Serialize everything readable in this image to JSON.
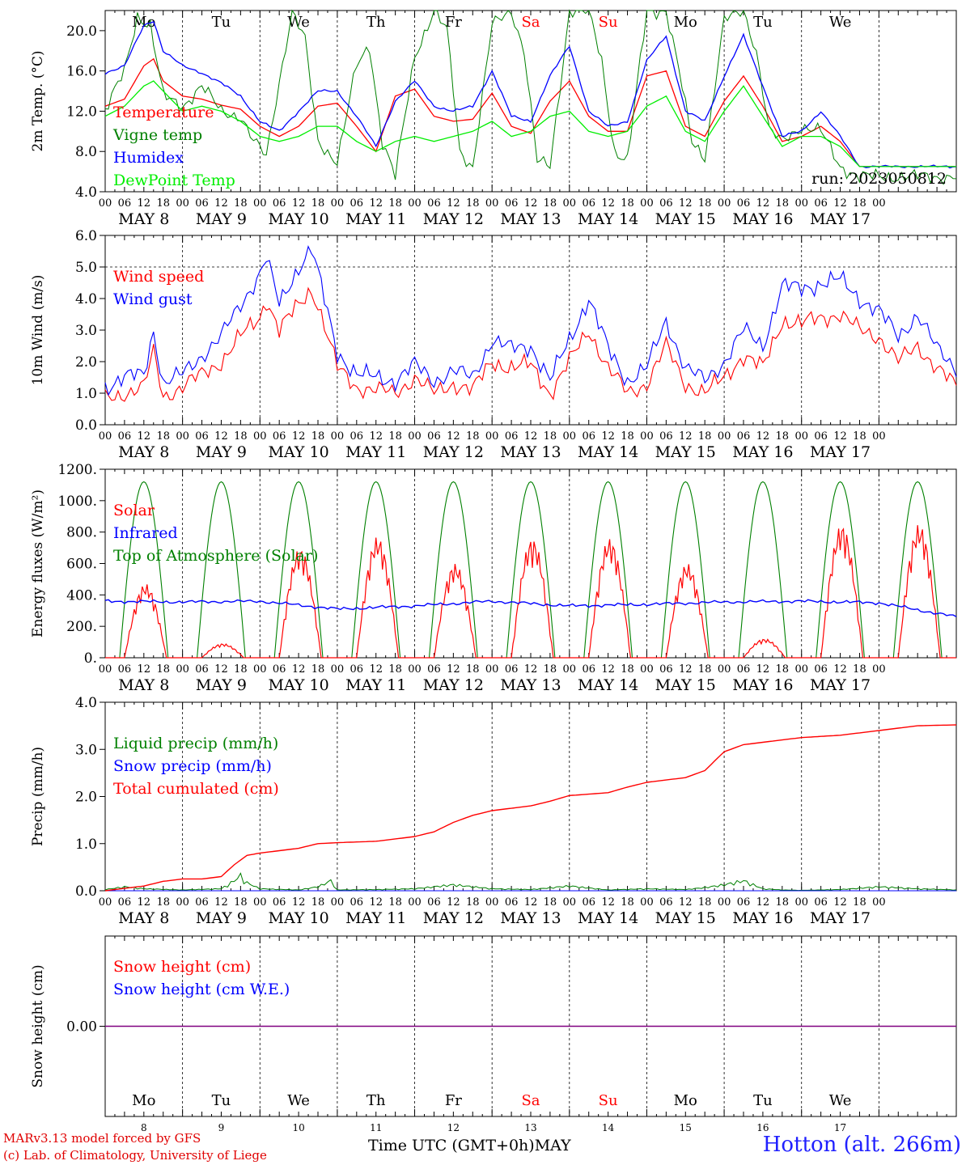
{
  "run_label": "run: 2023050812",
  "day_numbers": [
    "8",
    "9",
    "10",
    "11",
    "12",
    "13",
    "14",
    "15",
    "16",
    "17"
  ],
  "weekdays": [
    "Mo",
    "Tu",
    "We",
    "Th",
    "Fr",
    "Sa",
    "Su",
    "Mo",
    "Tu",
    "We"
  ],
  "weekend_days": [
    "Sa",
    "Su"
  ],
  "date_labels": [
    "MAY  8",
    "MAY  9",
    "MAY 10",
    "MAY 11",
    "MAY 12",
    "MAY 13",
    "MAY 14",
    "MAY 15",
    "MAY 16",
    "MAY 17"
  ],
  "hour_labels": [
    "00",
    "06",
    "12",
    "18"
  ],
  "last_hour_label": "00",
  "footer": {
    "model": "MARv3.13 model forced by GFS",
    "lab": "(c) Lab. of Climatology, University of Liege",
    "time_label": "Time UTC (GMT+0h)",
    "month": "MAY",
    "station": "Hotton (alt. 266m)"
  },
  "colors": {
    "red": "#ff0000",
    "darkgreen": "#008000",
    "blue": "#0000ff",
    "lightgreen": "#00ee00",
    "purple": "#800080"
  },
  "chart_data": [
    {
      "type": "line",
      "ylabel": "2m Temp. (°C)",
      "yticks": [
        "4.0",
        "8.0",
        "12.0",
        "16.0",
        "20.0"
      ],
      "ylim": [
        4,
        22
      ],
      "x_unit": "hours since May 8 00 UTC",
      "run_label": "run: 2023050812",
      "series": [
        {
          "name": "Temperature",
          "color": "#ff0000",
          "x": [
            0,
            6,
            12,
            15,
            18,
            24,
            30,
            36,
            42,
            48,
            54,
            60,
            66,
            72,
            78,
            84,
            90,
            96,
            102,
            108,
            114,
            120,
            126,
            132,
            138,
            144,
            150,
            156,
            162,
            168,
            174,
            180,
            186,
            192,
            198,
            204,
            210,
            216,
            222,
            228,
            234
          ],
          "values": [
            12.5,
            13.2,
            16.5,
            17.2,
            15.0,
            13.5,
            13.2,
            12.6,
            12.2,
            10.5,
            9.5,
            10.5,
            12.5,
            12.8,
            10.5,
            8.0,
            13.5,
            14.2,
            11.5,
            11.0,
            11.2,
            13.8,
            10.5,
            9.8,
            13.0,
            15.0,
            11.5,
            10.0,
            10.0,
            15.5,
            16.0,
            10.5,
            9.5,
            13.0,
            15.5,
            12.5,
            9.0,
            9.5,
            10.5,
            9.0,
            6.5
          ]
        },
        {
          "name": "Vigne temp",
          "color": "#008000",
          "x": [
            0,
            6,
            10,
            14,
            18,
            24,
            30,
            36,
            42,
            46,
            50,
            54,
            58,
            62,
            66,
            72,
            78,
            82,
            86,
            90,
            96,
            102,
            106,
            110,
            114,
            120,
            126,
            130,
            134,
            138,
            144,
            150,
            154,
            158,
            162,
            168,
            174,
            178,
            182,
            186,
            192,
            198,
            202,
            206,
            210,
            216,
            222,
            228,
            234
          ],
          "values": [
            12.0,
            16.0,
            21.5,
            20.5,
            13.5,
            12.5,
            14.5,
            12.0,
            11.5,
            9.0,
            7.5,
            15.0,
            22.0,
            19.0,
            9.0,
            7.0,
            16.5,
            18.5,
            9.0,
            5.5,
            17.5,
            22.0,
            20.0,
            8.0,
            6.5,
            20.5,
            22.0,
            18.0,
            7.0,
            6.5,
            22.0,
            22.0,
            17.0,
            8.0,
            7.0,
            22.0,
            22.0,
            16.0,
            9.0,
            7.5,
            21.0,
            22.0,
            18.0,
            10.0,
            9.0,
            10.5,
            10.0,
            6.5,
            5.5
          ]
        },
        {
          "name": "Humidex",
          "color": "#0000ff",
          "x": [
            0,
            6,
            12,
            15,
            18,
            24,
            30,
            36,
            42,
            48,
            54,
            60,
            66,
            72,
            78,
            84,
            90,
            96,
            102,
            108,
            114,
            120,
            126,
            132,
            138,
            144,
            150,
            156,
            162,
            168,
            174,
            180,
            186,
            192,
            198,
            204,
            210,
            216,
            222,
            228,
            234
          ],
          "values": [
            15.8,
            16.5,
            20.5,
            21.0,
            18.0,
            16.5,
            15.8,
            14.8,
            13.5,
            11.0,
            10.0,
            12.0,
            14.0,
            14.0,
            11.5,
            8.5,
            13.0,
            15.0,
            12.5,
            12.0,
            12.5,
            16.0,
            11.5,
            11.0,
            15.5,
            18.5,
            12.0,
            10.5,
            11.0,
            17.0,
            19.5,
            12.0,
            11.0,
            15.5,
            19.5,
            14.5,
            9.5,
            10.0,
            12.0,
            9.5,
            6.5
          ]
        },
        {
          "name": "DewPoint Temp",
          "color": "#00ee00",
          "x": [
            0,
            6,
            12,
            15,
            18,
            24,
            30,
            36,
            42,
            48,
            54,
            60,
            66,
            72,
            78,
            84,
            90,
            96,
            102,
            108,
            114,
            120,
            126,
            132,
            138,
            144,
            150,
            156,
            162,
            168,
            174,
            180,
            186,
            192,
            198,
            204,
            210,
            216,
            222,
            228,
            234
          ],
          "values": [
            11.5,
            12.5,
            14.5,
            15.0,
            14.0,
            12.0,
            12.5,
            12.0,
            11.0,
            9.5,
            9.0,
            9.5,
            10.5,
            10.5,
            9.0,
            8.0,
            9.0,
            9.5,
            9.0,
            9.5,
            10.0,
            11.0,
            9.5,
            10.0,
            11.5,
            12.0,
            10.0,
            9.5,
            10.0,
            12.5,
            13.5,
            10.0,
            9.0,
            12.0,
            14.5,
            11.5,
            8.5,
            9.5,
            9.5,
            8.5,
            6.5
          ]
        }
      ]
    },
    {
      "type": "line",
      "ylabel": "10m Wind (m/s)",
      "yticks": [
        "0.0",
        "1.0",
        "2.0",
        "3.0",
        "4.0",
        "5.0",
        "6.0"
      ],
      "ylim": [
        0,
        6
      ],
      "hline": 5.0,
      "series": [
        {
          "name": "Wind speed",
          "color": "#ff0000",
          "x": [
            0,
            6,
            12,
            15,
            18,
            24,
            30,
            36,
            42,
            48,
            50,
            54,
            60,
            64,
            66,
            72,
            78,
            84,
            90,
            96,
            102,
            108,
            114,
            120,
            126,
            132,
            138,
            144,
            150,
            156,
            162,
            168,
            174,
            180,
            186,
            192,
            198,
            204,
            210,
            216,
            222,
            228,
            234
          ],
          "values": [
            0.8,
            1.0,
            1.2,
            2.3,
            0.9,
            1.2,
            1.6,
            2.0,
            2.8,
            3.4,
            4.0,
            3.0,
            3.8,
            4.3,
            3.8,
            1.8,
            1.2,
            1.1,
            1.0,
            1.5,
            1.0,
            1.3,
            1.1,
            2.0,
            1.8,
            1.9,
            1.0,
            2.0,
            3.0,
            1.8,
            1.0,
            1.3,
            2.5,
            1.3,
            1.0,
            1.5,
            2.2,
            1.8,
            3.3,
            3.2,
            3.4,
            3.5,
            3.0
          ],
          "tail": {
            "x": [
              240,
              246,
              252,
              258,
              264
            ],
            "values": [
              2.8,
              2.0,
              2.5,
              1.8,
              1.2
            ]
          }
        },
        {
          "name": "Wind gust",
          "color": "#0000ff",
          "x": [
            0,
            6,
            12,
            15,
            18,
            24,
            30,
            36,
            42,
            48,
            50,
            54,
            60,
            64,
            66,
            72,
            78,
            84,
            90,
            96,
            102,
            108,
            114,
            120,
            126,
            132,
            138,
            144,
            150,
            156,
            162,
            168,
            174,
            180,
            186,
            192,
            198,
            204,
            210,
            216,
            222,
            228,
            234
          ],
          "values": [
            1.2,
            1.5,
            1.6,
            3.0,
            1.3,
            1.6,
            2.2,
            2.8,
            3.8,
            4.8,
            5.3,
            3.8,
            5.0,
            5.6,
            4.8,
            2.3,
            1.6,
            1.5,
            1.4,
            1.9,
            1.4,
            1.7,
            1.5,
            2.7,
            2.4,
            2.5,
            1.4,
            2.7,
            4.0,
            2.4,
            1.4,
            1.8,
            3.3,
            1.8,
            1.4,
            2.0,
            3.0,
            2.5,
            4.4,
            4.3,
            4.5,
            4.6,
            4.0
          ],
          "tail": {
            "x": [
              240,
              246,
              252,
              258,
              264
            ],
            "values": [
              3.6,
              2.8,
              3.5,
              2.4,
              1.8
            ]
          }
        }
      ]
    },
    {
      "type": "line",
      "ylabel": "Energy fluxes (W/m²)",
      "yticks": [
        "0.",
        "200.",
        "400.",
        "600.",
        "800.",
        "1000.",
        "1200."
      ],
      "ylim": [
        0,
        1200
      ],
      "series": [
        {
          "name": "Solar",
          "color": "#ff0000",
          "day_peaks": [
            470,
            90,
            700,
            770,
            600,
            760,
            760,
            600,
            120,
            850
          ]
        },
        {
          "name": "Infrared",
          "color": "#0000ff",
          "x": [
            0,
            24,
            48,
            72,
            96,
            120,
            144,
            168,
            192,
            216,
            240,
            264
          ],
          "values": [
            360,
            355,
            360,
            310,
            330,
            360,
            330,
            340,
            355,
            360,
            350,
            260
          ]
        },
        {
          "name": "Top of Atmosphere (Solar)",
          "color": "#008000",
          "peak": 1120,
          "sunrise_hour": 4.5,
          "sunset_hour": 19.5
        }
      ]
    },
    {
      "type": "line",
      "ylabel": "Precip (mm/h)",
      "yticks": [
        "0.0",
        "1.0",
        "2.0",
        "3.0",
        "4.0"
      ],
      "ylim": [
        0,
        4
      ],
      "series": [
        {
          "name": "Liquid precip (mm/h)",
          "color": "#008000",
          "x": [
            0,
            6,
            12,
            24,
            36,
            40,
            42,
            44,
            48,
            60,
            66,
            70,
            72,
            84,
            96,
            108,
            120,
            132,
            144,
            156,
            168,
            180,
            186,
            192,
            198,
            204,
            210,
            216,
            228,
            240,
            252,
            264
          ],
          "values": [
            0.03,
            0.1,
            0.05,
            0.02,
            0.05,
            0.25,
            0.38,
            0.2,
            0.05,
            0.02,
            0.1,
            0.25,
            0.02,
            0.03,
            0.05,
            0.15,
            0.05,
            0.03,
            0.12,
            0.02,
            0.05,
            0.03,
            0.08,
            0.15,
            0.25,
            0.05,
            0.02,
            0.01,
            0.03,
            0.1,
            0.05,
            0.02
          ]
        },
        {
          "name": "Snow precip (mm/h)",
          "color": "#0000ff",
          "x": [
            0,
            264
          ],
          "values": [
            0,
            0
          ]
        },
        {
          "name": "Total cumulated (cm)",
          "color": "#ff0000",
          "x": [
            0,
            6,
            12,
            18,
            24,
            30,
            36,
            40,
            44,
            48,
            54,
            60,
            66,
            72,
            84,
            96,
            102,
            108,
            114,
            120,
            126,
            132,
            138,
            144,
            150,
            156,
            162,
            168,
            180,
            186,
            192,
            198,
            204,
            210,
            216,
            228,
            240,
            252,
            264
          ],
          "values": [
            0,
            0.05,
            0.1,
            0.2,
            0.25,
            0.25,
            0.3,
            0.55,
            0.75,
            0.8,
            0.85,
            0.9,
            1.0,
            1.02,
            1.05,
            1.15,
            1.25,
            1.45,
            1.6,
            1.7,
            1.75,
            1.8,
            1.9,
            2.02,
            2.05,
            2.08,
            2.2,
            2.3,
            2.4,
            2.55,
            2.95,
            3.1,
            3.15,
            3.2,
            3.25,
            3.3,
            3.4,
            3.5,
            3.52
          ]
        }
      ]
    },
    {
      "type": "line",
      "ylabel": "Snow height (cm)",
      "yticks": [
        "0.00"
      ],
      "series": [
        {
          "name": "Snow height (cm)",
          "color": "#ff0000",
          "x": [
            0,
            264
          ],
          "values": [
            0,
            0
          ]
        },
        {
          "name": "Snow height (cm W.E.)",
          "color": "#0000ff",
          "x": [
            0,
            264
          ],
          "values": [
            0,
            0
          ]
        }
      ]
    }
  ]
}
